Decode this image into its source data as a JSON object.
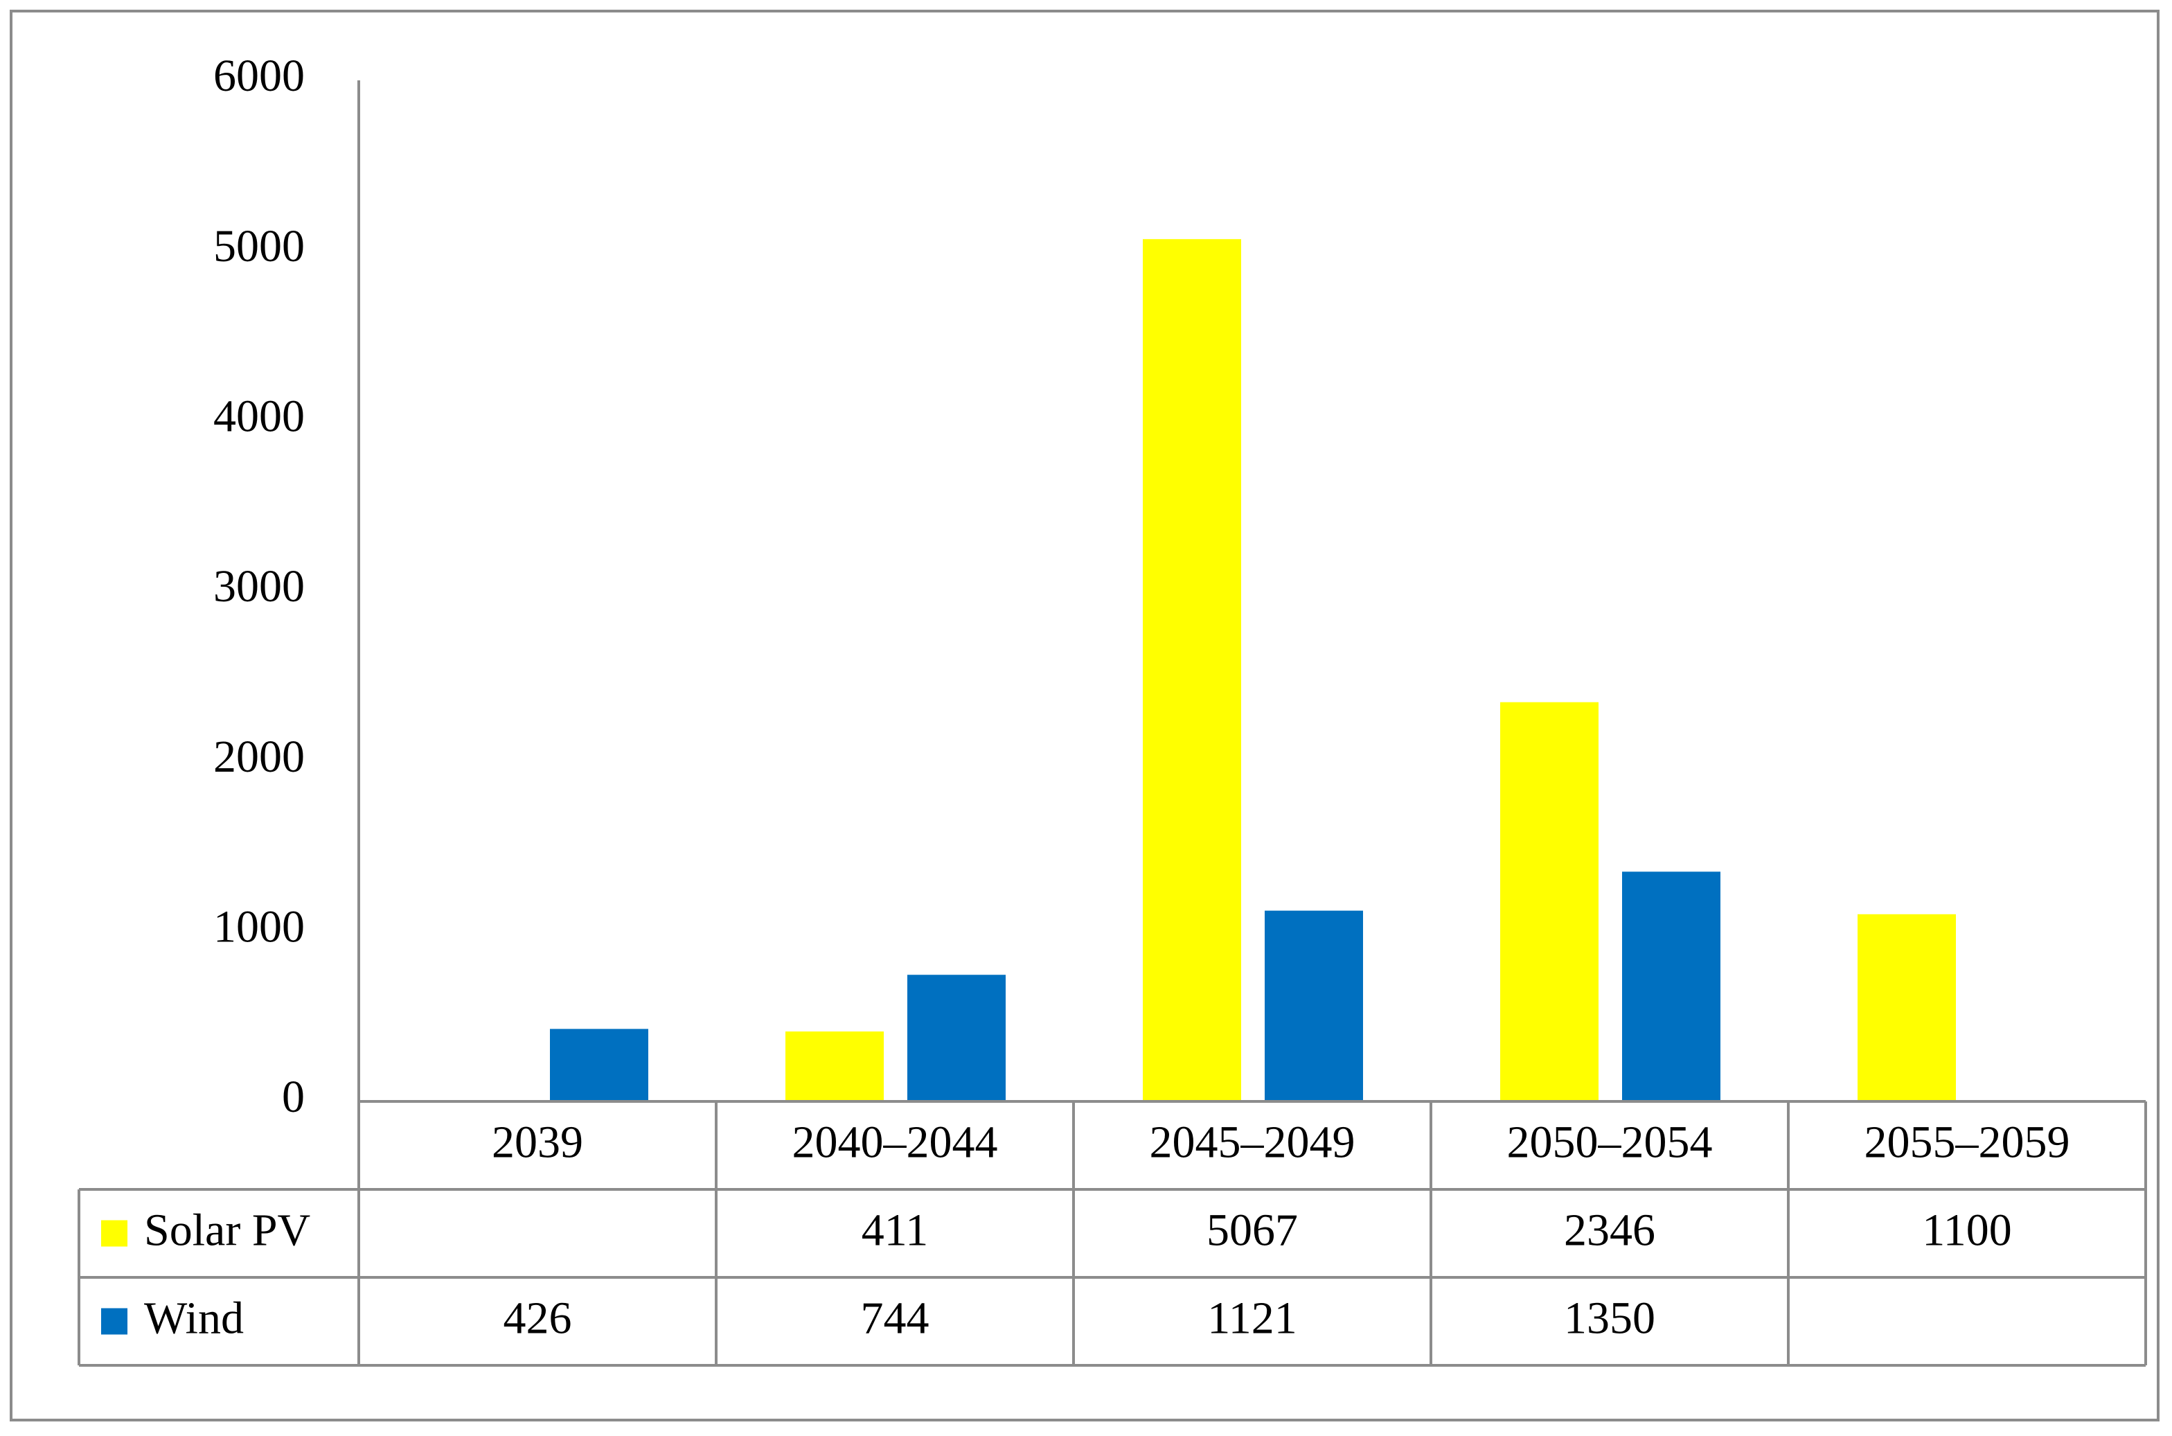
{
  "chart_data": {
    "type": "bar",
    "categories": [
      "2039",
      "2040–2044",
      "2045–2049",
      "2050–2054",
      "2055–2059"
    ],
    "series": [
      {
        "name": "Solar PV",
        "color": "#ffff00",
        "values": [
          null,
          411,
          5067,
          2346,
          1100
        ]
      },
      {
        "name": "Wind",
        "color": "#0070c0",
        "values": [
          426,
          744,
          1121,
          1350,
          null
        ]
      }
    ],
    "ylim": [
      0,
      6000
    ],
    "yticks": [
      0,
      1000,
      2000,
      3000,
      4000,
      5000,
      6000
    ],
    "grid": false,
    "data_table": true
  }
}
